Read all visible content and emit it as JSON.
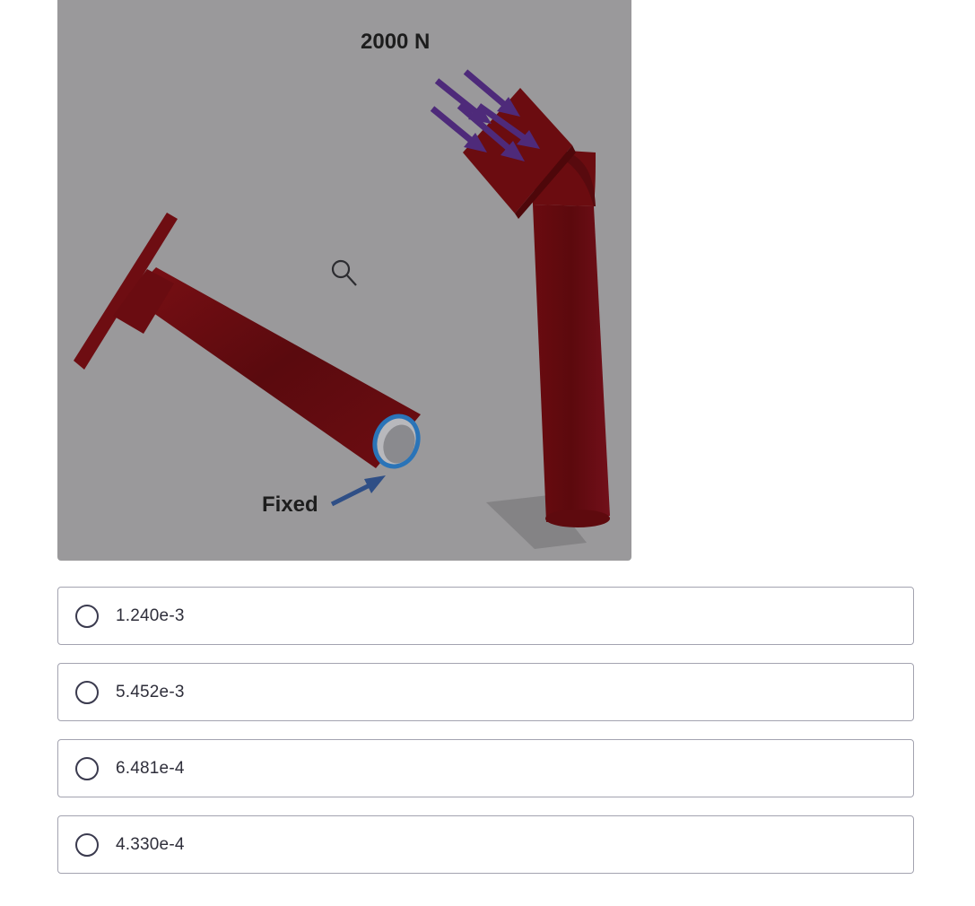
{
  "figure": {
    "force_label": "2000 N",
    "fixed_label": "Fixed",
    "zoom_icon": "magnifier-icon",
    "colors": {
      "background": "#9a999b",
      "pipe": "#6b0c10",
      "force_arrows": "#4e2a7a",
      "fixed_arrow": "#2f4f86",
      "fixed_ring": "#2a74b8"
    }
  },
  "options": [
    {
      "label": "1.240e-3"
    },
    {
      "label": "5.452e-3"
    },
    {
      "label": "6.481e-4"
    },
    {
      "label": "4.330e-4"
    }
  ]
}
